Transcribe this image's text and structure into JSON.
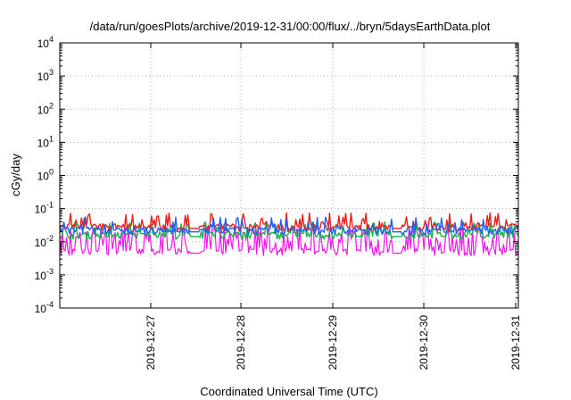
{
  "chart_data": {
    "type": "line",
    "title": "/data/run/goesPlots/archive/2019-12-31/00:00/flux/../bryn/5daysEarthData.plot",
    "xlabel": "Coordinated Universal Time (UTC)",
    "ylabel": "cGy/day",
    "yscale": "log",
    "ylim": [
      0.0001,
      10000
    ],
    "y_ticks": [
      {
        "base": "10",
        "exp": "4"
      },
      {
        "base": "10",
        "exp": "3"
      },
      {
        "base": "10",
        "exp": "2"
      },
      {
        "base": "10",
        "exp": "1"
      },
      {
        "base": "10",
        "exp": "0"
      },
      {
        "base": "10",
        "exp": "-1"
      },
      {
        "base": "10",
        "exp": "-2"
      },
      {
        "base": "10",
        "exp": "-3"
      },
      {
        "base": "10",
        "exp": "-4"
      }
    ],
    "xlim": [
      "2019-12-26 00:00",
      "2019-12-31 00:00"
    ],
    "x_ticks": [
      "2019-12-27",
      "2019-12-28",
      "2019-12-29",
      "2019-12-30",
      "2019-12-31"
    ],
    "grid": true,
    "series": [
      {
        "color": "#e8201b",
        "baseline": 0.028,
        "spike_max": 0.075
      },
      {
        "color": "#19b24a",
        "baseline": 0.016,
        "spike_max": 0.04
      },
      {
        "color": "#1f64f0",
        "baseline": 0.022,
        "spike_max": 0.055
      },
      {
        "color": "#ee16e8",
        "baseline": 0.005,
        "spike_max": 0.03
      }
    ]
  }
}
